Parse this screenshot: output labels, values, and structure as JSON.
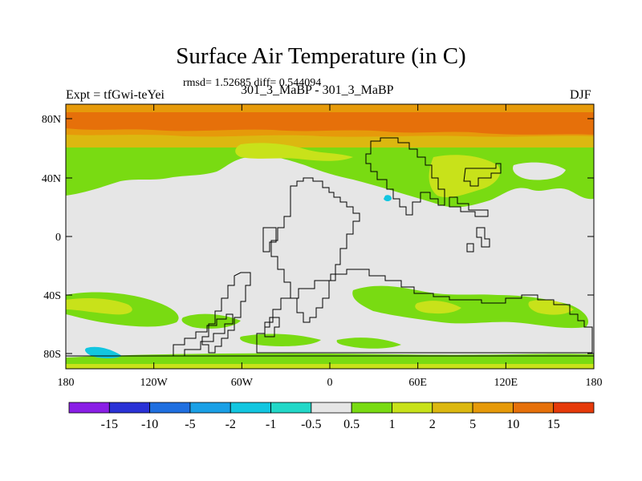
{
  "title": "Surface Air Temperature (in C)",
  "stats": "rmsd= 1.52685 diff= 0.544094",
  "experiment": "Expt = tfGwi-teYei",
  "cases": "301_3_MaBP - 301_3_MaBP",
  "season": "DJF",
  "lat_ticks": [
    "80N",
    "40N",
    "0",
    "40S",
    "80S"
  ],
  "lon_ticks": [
    "180",
    "120W",
    "60W",
    "0",
    "60E",
    "120E",
    "180"
  ],
  "colorbar": {
    "colors": [
      "#8a1ee6",
      "#2a32d6",
      "#1f6fe0",
      "#1aa0e6",
      "#12c6e0",
      "#22d8c8",
      "#e6e6e6",
      "#79db12",
      "#c8e21a",
      "#dcb810",
      "#e69a0a",
      "#e6700a",
      "#e63a0a"
    ],
    "labels": [
      "-15",
      "-10",
      "-5",
      "-2",
      "-1",
      "-0.5",
      "0.5",
      "1",
      "2",
      "5",
      "10",
      "15"
    ]
  },
  "palette": {
    "neutral": "#e6e6e6",
    "lightgreen": "#79db12",
    "yellowgreen": "#c8e21a",
    "yellow": "#dcb810",
    "orange": "#e69a0a",
    "darkorange": "#e6700a",
    "cyan": "#12c6e0"
  }
}
